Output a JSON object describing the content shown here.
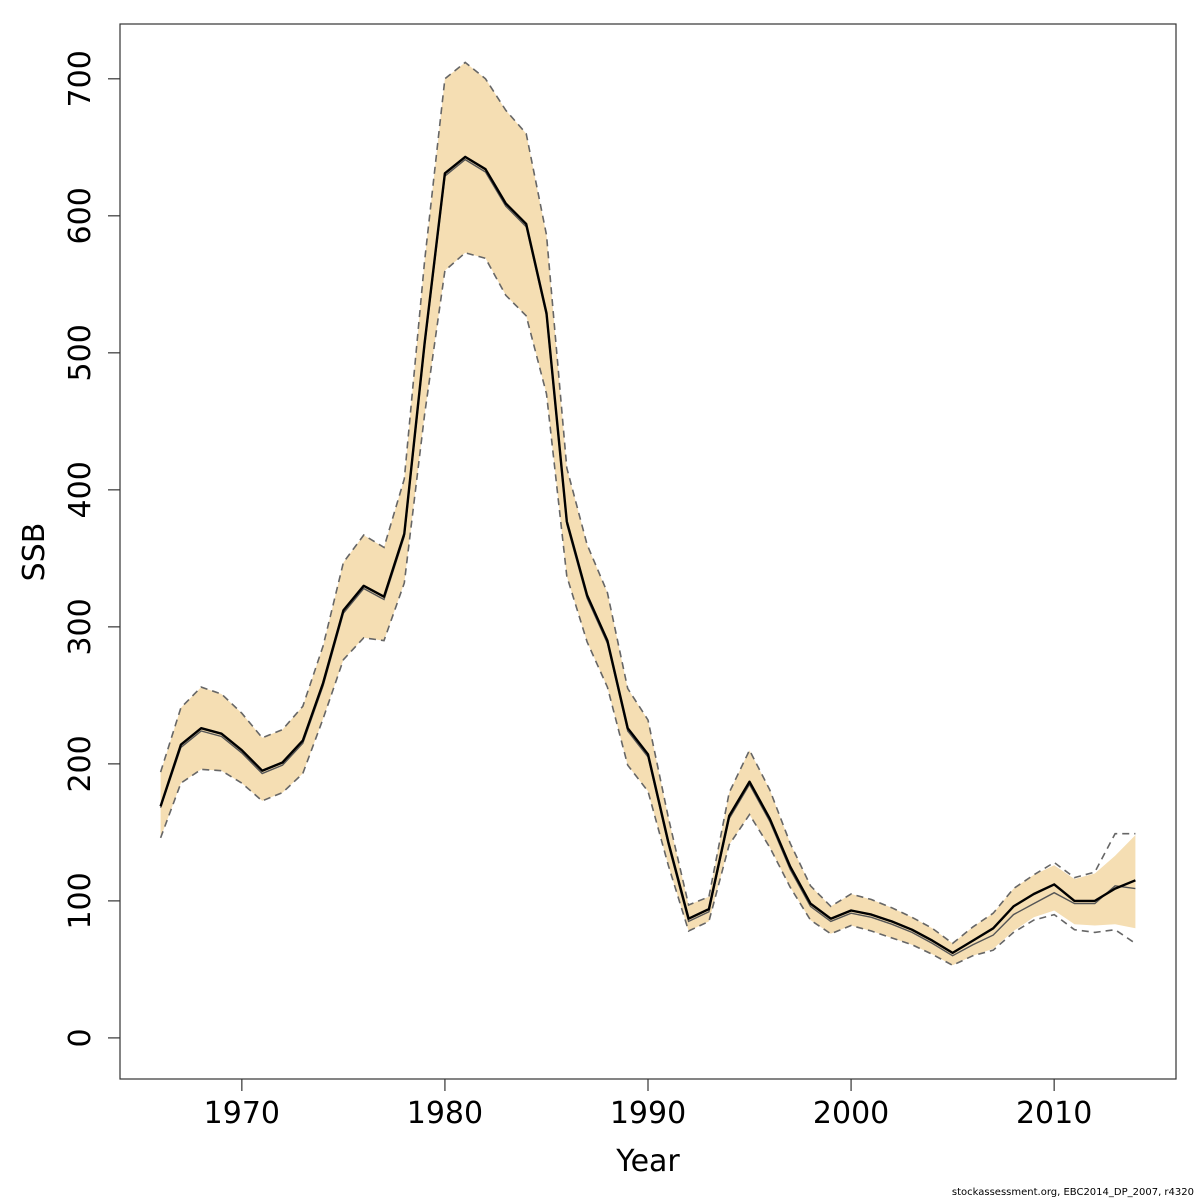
{
  "chart_data": {
    "type": "line",
    "xlabel": "Year",
    "ylabel": "SSB",
    "xlim": [
      1964,
      2016
    ],
    "ylim": [
      -30,
      740
    ],
    "x_ticks": [
      1970,
      1980,
      1990,
      2000,
      2010
    ],
    "y_ticks": [
      0,
      100,
      200,
      300,
      400,
      500,
      600,
      700
    ],
    "band_color": "#F5DEB3",
    "line_color": "#000000",
    "bound_color": "#666666",
    "x": [
      1966,
      1967,
      1968,
      1969,
      1970,
      1971,
      1972,
      1973,
      1974,
      1975,
      1976,
      1977,
      1978,
      1979,
      1980,
      1981,
      1982,
      1983,
      1984,
      1985,
      1986,
      1987,
      1988,
      1989,
      1990,
      1991,
      1992,
      1993,
      1994,
      1995,
      1996,
      1997,
      1998,
      1999,
      2000,
      2001,
      2002,
      2003,
      2004,
      2005,
      2006,
      2007,
      2008,
      2009,
      2010,
      2011,
      2012,
      2013,
      2014
    ],
    "series": [
      {
        "role": "estimate",
        "values": [
          169,
          214,
          226,
          222,
          210,
          195,
          201,
          217,
          259,
          312,
          330,
          322,
          368,
          507,
          631,
          643,
          634,
          609,
          594,
          529,
          377,
          323,
          290,
          226,
          207,
          143,
          87,
          94,
          162,
          187,
          160,
          125,
          98,
          87,
          93,
          90,
          85,
          79,
          71,
          62,
          71,
          80,
          96,
          105,
          112,
          100,
          100,
          109,
          115
        ]
      },
      {
        "role": "upper",
        "values": [
          194,
          241,
          256,
          251,
          237,
          219,
          225,
          242,
          286,
          347,
          367,
          358,
          408,
          567,
          700,
          712,
          700,
          677,
          660,
          586,
          416,
          360,
          325,
          255,
          232,
          161,
          97,
          103,
          179,
          210,
          181,
          142,
          111,
          96,
          105,
          101,
          95,
          88,
          80,
          69,
          81,
          91,
          109,
          119,
          128,
          117,
          121,
          149,
          149
        ]
      },
      {
        "role": "lower",
        "values": [
          146,
          186,
          196,
          195,
          186,
          173,
          179,
          193,
          233,
          276,
          292,
          290,
          332,
          455,
          560,
          573,
          569,
          542,
          527,
          470,
          337,
          289,
          256,
          199,
          180,
          126,
          78,
          85,
          141,
          163,
          139,
          110,
          86,
          76,
          82,
          78,
          73,
          68,
          61,
          53,
          60,
          64,
          77,
          86,
          90,
          79,
          77,
          79,
          69
        ]
      },
      {
        "role": "band_upper",
        "values": [
          194,
          241,
          256,
          251,
          237,
          219,
          225,
          242,
          286,
          347,
          367,
          358,
          408,
          567,
          700,
          712,
          700,
          677,
          660,
          586,
          416,
          360,
          325,
          255,
          232,
          161,
          97,
          103,
          179,
          210,
          181,
          142,
          111,
          96,
          105,
          101,
          95,
          88,
          80,
          69,
          81,
          91,
          109,
          119,
          126,
          116,
          120,
          133,
          148
        ]
      },
      {
        "role": "band_lower",
        "values": [
          146,
          186,
          196,
          195,
          186,
          173,
          179,
          193,
          233,
          276,
          292,
          290,
          332,
          455,
          560,
          573,
          569,
          542,
          527,
          470,
          337,
          289,
          256,
          199,
          180,
          126,
          78,
          85,
          141,
          163,
          139,
          110,
          86,
          76,
          82,
          78,
          73,
          68,
          61,
          53,
          60,
          65,
          78,
          88,
          93,
          83,
          82,
          83,
          80
        ]
      },
      {
        "role": "median",
        "values": [
          168,
          212,
          224,
          220,
          208,
          193,
          199,
          215,
          257,
          310,
          328,
          320,
          366,
          505,
          629,
          641,
          632,
          607,
          592,
          527,
          375,
          321,
          288,
          224,
          205,
          141,
          85,
          92,
          160,
          185,
          158,
          123,
          96,
          85,
          91,
          88,
          83,
          77,
          69,
          60,
          68,
          75,
          90,
          98,
          106,
          98,
          98,
          111,
          109
        ]
      }
    ]
  },
  "footnote": "stockassessment.org, EBC2014_DP_2007, r4320"
}
